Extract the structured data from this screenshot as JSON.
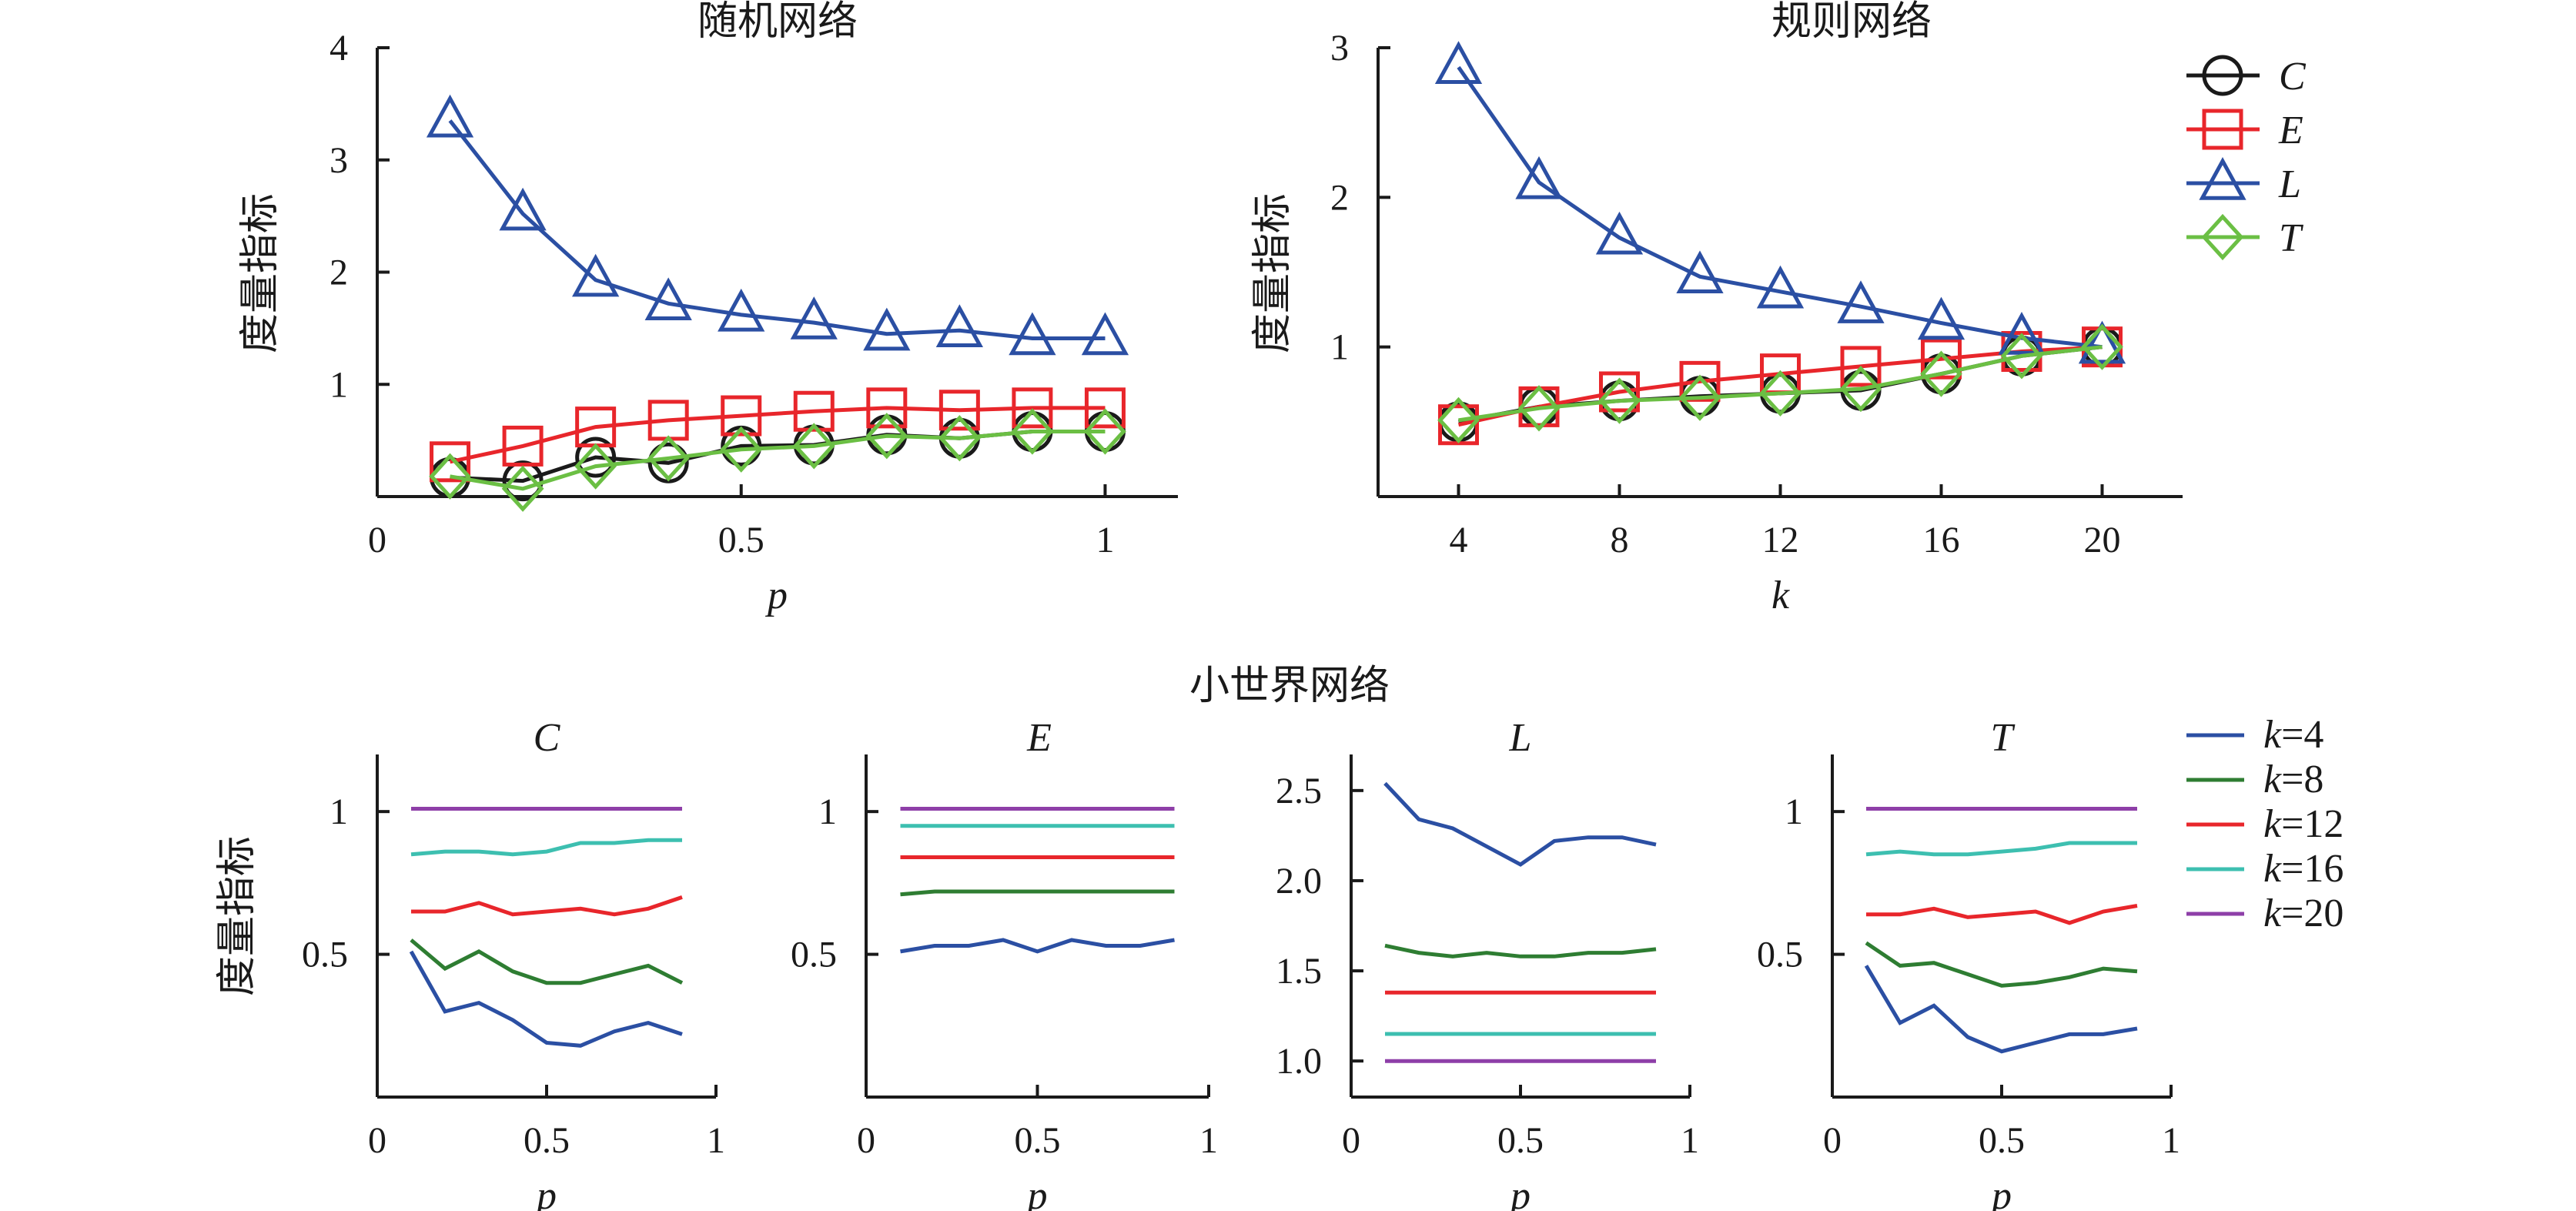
{
  "colors": {
    "C": "#1a1a1a",
    "E": "#e8262b",
    "L": "#2b4fa3",
    "T": "#6bbf44",
    "k4": "#2b4fa3",
    "k8": "#2e7d32",
    "k12": "#e8262b",
    "k16": "#3dbfb0",
    "k20": "#8e3fa8",
    "axis": "#1a1a1a"
  },
  "section_title": "小世界网络",
  "legend_top": [
    {
      "key": "C",
      "label": "C",
      "marker": "circle"
    },
    {
      "key": "E",
      "label": "E",
      "marker": "square"
    },
    {
      "key": "L",
      "label": "L",
      "marker": "triangle"
    },
    {
      "key": "T",
      "label": "T",
      "marker": "diamond"
    }
  ],
  "legend_bottom": [
    {
      "key": "k4",
      "label": "k=4"
    },
    {
      "key": "k8",
      "label": "k=8"
    },
    {
      "key": "k12",
      "label": "k=12"
    },
    {
      "key": "k16",
      "label": "k=16"
    },
    {
      "key": "k20",
      "label": "k=20"
    }
  ],
  "chart_data": [
    {
      "id": "random",
      "type": "line",
      "title": "随机网络",
      "xlabel": "p",
      "ylabel": "度量指标",
      "xlim": [
        0,
        1.1
      ],
      "ylim": [
        0,
        4
      ],
      "xticks": [
        0,
        0.5,
        1
      ],
      "xtick_labels": [
        "0",
        "0.5",
        "1"
      ],
      "yticks": [
        1,
        2,
        3,
        4
      ],
      "ytick_labels": [
        "1",
        "2",
        "3",
        "4"
      ],
      "x": [
        0.1,
        0.2,
        0.3,
        0.4,
        0.5,
        0.6,
        0.7,
        0.8,
        0.9,
        1.0
      ],
      "series": [
        {
          "name": "C",
          "values": [
            0.17,
            0.14,
            0.35,
            0.3,
            0.45,
            0.46,
            0.55,
            0.52,
            0.58,
            0.58
          ]
        },
        {
          "name": "E",
          "values": [
            0.31,
            0.45,
            0.62,
            0.68,
            0.72,
            0.76,
            0.79,
            0.77,
            0.79,
            0.79
          ]
        },
        {
          "name": "L",
          "values": [
            3.35,
            2.52,
            1.93,
            1.72,
            1.62,
            1.55,
            1.45,
            1.48,
            1.41,
            1.41
          ]
        },
        {
          "name": "T",
          "values": [
            0.18,
            0.07,
            0.27,
            0.34,
            0.42,
            0.45,
            0.54,
            0.52,
            0.58,
            0.58
          ]
        }
      ]
    },
    {
      "id": "regular",
      "type": "line",
      "title": "规则网络",
      "xlabel": "k",
      "ylabel": "度量指标",
      "xlim": [
        2,
        22
      ],
      "ylim": [
        0,
        3
      ],
      "xticks": [
        4,
        8,
        12,
        16,
        20
      ],
      "xtick_labels": [
        "4",
        "8",
        "12",
        "16",
        "20"
      ],
      "yticks": [
        1,
        2,
        3
      ],
      "ytick_labels": [
        "1",
        "2",
        "3"
      ],
      "x": [
        4,
        6,
        8,
        10,
        12,
        14,
        16,
        18,
        20
      ],
      "series": [
        {
          "name": "C",
          "values": [
            0.5,
            0.6,
            0.64,
            0.67,
            0.69,
            0.71,
            0.82,
            0.94,
            1.0
          ]
        },
        {
          "name": "E",
          "values": [
            0.48,
            0.6,
            0.7,
            0.77,
            0.82,
            0.87,
            0.92,
            0.97,
            1.0
          ]
        },
        {
          "name": "L",
          "values": [
            2.87,
            2.1,
            1.73,
            1.47,
            1.37,
            1.27,
            1.16,
            1.06,
            1.0
          ]
        },
        {
          "name": "T",
          "values": [
            0.51,
            0.59,
            0.64,
            0.66,
            0.69,
            0.72,
            0.82,
            0.94,
            1.0
          ]
        }
      ]
    },
    {
      "id": "sw-C",
      "type": "line",
      "title": "C",
      "xlabel": "p",
      "ylabel": "度量指标",
      "xlim": [
        0,
        1
      ],
      "ylim": [
        0,
        1.2
      ],
      "xticks": [
        0,
        0.5,
        1
      ],
      "xtick_labels": [
        "0",
        "0.5",
        "1"
      ],
      "yticks": [
        0.5,
        1
      ],
      "ytick_labels": [
        "0.5",
        "1"
      ],
      "x": [
        0.1,
        0.2,
        0.3,
        0.4,
        0.5,
        0.6,
        0.7,
        0.8,
        0.9
      ],
      "series": [
        {
          "name": "k=4",
          "values": [
            0.51,
            0.3,
            0.33,
            0.27,
            0.19,
            0.18,
            0.23,
            0.26,
            0.22
          ]
        },
        {
          "name": "k=8",
          "values": [
            0.55,
            0.45,
            0.51,
            0.44,
            0.4,
            0.4,
            0.43,
            0.46,
            0.4
          ]
        },
        {
          "name": "k=12",
          "values": [
            0.65,
            0.65,
            0.68,
            0.64,
            0.65,
            0.66,
            0.64,
            0.66,
            0.7
          ]
        },
        {
          "name": "k=16",
          "values": [
            0.85,
            0.86,
            0.86,
            0.85,
            0.86,
            0.89,
            0.89,
            0.9,
            0.9
          ]
        },
        {
          "name": "k=20",
          "values": [
            1.01,
            1.01,
            1.01,
            1.01,
            1.01,
            1.01,
            1.01,
            1.01,
            1.01
          ]
        }
      ]
    },
    {
      "id": "sw-E",
      "type": "line",
      "title": "E",
      "xlabel": "p",
      "ylabel": "",
      "xlim": [
        0,
        1
      ],
      "ylim": [
        0,
        1.2
      ],
      "xticks": [
        0,
        0.5,
        1
      ],
      "xtick_labels": [
        "0",
        "0.5",
        "1"
      ],
      "yticks": [
        0.5,
        1
      ],
      "ytick_labels": [
        "0.5",
        "1"
      ],
      "x": [
        0.1,
        0.2,
        0.3,
        0.4,
        0.5,
        0.6,
        0.7,
        0.8,
        0.9
      ],
      "series": [
        {
          "name": "k=4",
          "values": [
            0.51,
            0.53,
            0.53,
            0.55,
            0.51,
            0.55,
            0.53,
            0.53,
            0.55
          ]
        },
        {
          "name": "k=8",
          "values": [
            0.71,
            0.72,
            0.72,
            0.72,
            0.72,
            0.72,
            0.72,
            0.72,
            0.72
          ]
        },
        {
          "name": "k=12",
          "values": [
            0.84,
            0.84,
            0.84,
            0.84,
            0.84,
            0.84,
            0.84,
            0.84,
            0.84
          ]
        },
        {
          "name": "k=16",
          "values": [
            0.95,
            0.95,
            0.95,
            0.95,
            0.95,
            0.95,
            0.95,
            0.95,
            0.95
          ]
        },
        {
          "name": "k=20",
          "values": [
            1.01,
            1.01,
            1.01,
            1.01,
            1.01,
            1.01,
            1.01,
            1.01,
            1.01
          ]
        }
      ]
    },
    {
      "id": "sw-L",
      "type": "line",
      "title": "L",
      "xlabel": "p",
      "ylabel": "",
      "xlim": [
        0,
        1
      ],
      "ylim": [
        0.8,
        2.7
      ],
      "xticks": [
        0,
        0.5,
        1
      ],
      "xtick_labels": [
        "0",
        "0.5",
        "1"
      ],
      "yticks": [
        1.0,
        1.5,
        2.0,
        2.5
      ],
      "ytick_labels": [
        "1.0",
        "1.5",
        "2.0",
        "2.5"
      ],
      "x": [
        0.1,
        0.2,
        0.3,
        0.4,
        0.5,
        0.6,
        0.7,
        0.8,
        0.9
      ],
      "series": [
        {
          "name": "k=4",
          "values": [
            2.54,
            2.34,
            2.29,
            2.19,
            2.09,
            2.22,
            2.24,
            2.24,
            2.2
          ]
        },
        {
          "name": "k=8",
          "values": [
            1.64,
            1.6,
            1.58,
            1.6,
            1.58,
            1.58,
            1.6,
            1.6,
            1.62
          ]
        },
        {
          "name": "k=12",
          "values": [
            1.38,
            1.38,
            1.38,
            1.38,
            1.38,
            1.38,
            1.38,
            1.38,
            1.38
          ]
        },
        {
          "name": "k=16",
          "values": [
            1.15,
            1.15,
            1.15,
            1.15,
            1.15,
            1.15,
            1.15,
            1.15,
            1.15
          ]
        },
        {
          "name": "k=20",
          "values": [
            1.0,
            1.0,
            1.0,
            1.0,
            1.0,
            1.0,
            1.0,
            1.0,
            1.0
          ]
        }
      ]
    },
    {
      "id": "sw-T",
      "type": "line",
      "title": "T",
      "xlabel": "p",
      "ylabel": "",
      "xlim": [
        0,
        1
      ],
      "ylim": [
        0,
        1.2
      ],
      "xticks": [
        0,
        0.5,
        1
      ],
      "xtick_labels": [
        "0",
        "0.5",
        "1"
      ],
      "yticks": [
        0.5,
        1
      ],
      "ytick_labels": [
        "0.5",
        "1"
      ],
      "x": [
        0.1,
        0.2,
        0.3,
        0.4,
        0.5,
        0.6,
        0.7,
        0.8,
        0.9
      ],
      "series": [
        {
          "name": "k=4",
          "values": [
            0.46,
            0.26,
            0.32,
            0.21,
            0.16,
            0.19,
            0.22,
            0.22,
            0.24
          ]
        },
        {
          "name": "k=8",
          "values": [
            0.54,
            0.46,
            0.47,
            0.43,
            0.39,
            0.4,
            0.42,
            0.45,
            0.44
          ]
        },
        {
          "name": "k=12",
          "values": [
            0.64,
            0.64,
            0.66,
            0.63,
            0.64,
            0.65,
            0.61,
            0.65,
            0.67
          ]
        },
        {
          "name": "k=16",
          "values": [
            0.85,
            0.86,
            0.85,
            0.85,
            0.86,
            0.87,
            0.89,
            0.89,
            0.89
          ]
        },
        {
          "name": "k=20",
          "values": [
            1.01,
            1.01,
            1.01,
            1.01,
            1.01,
            1.01,
            1.01,
            1.01,
            1.01
          ]
        }
      ]
    }
  ]
}
